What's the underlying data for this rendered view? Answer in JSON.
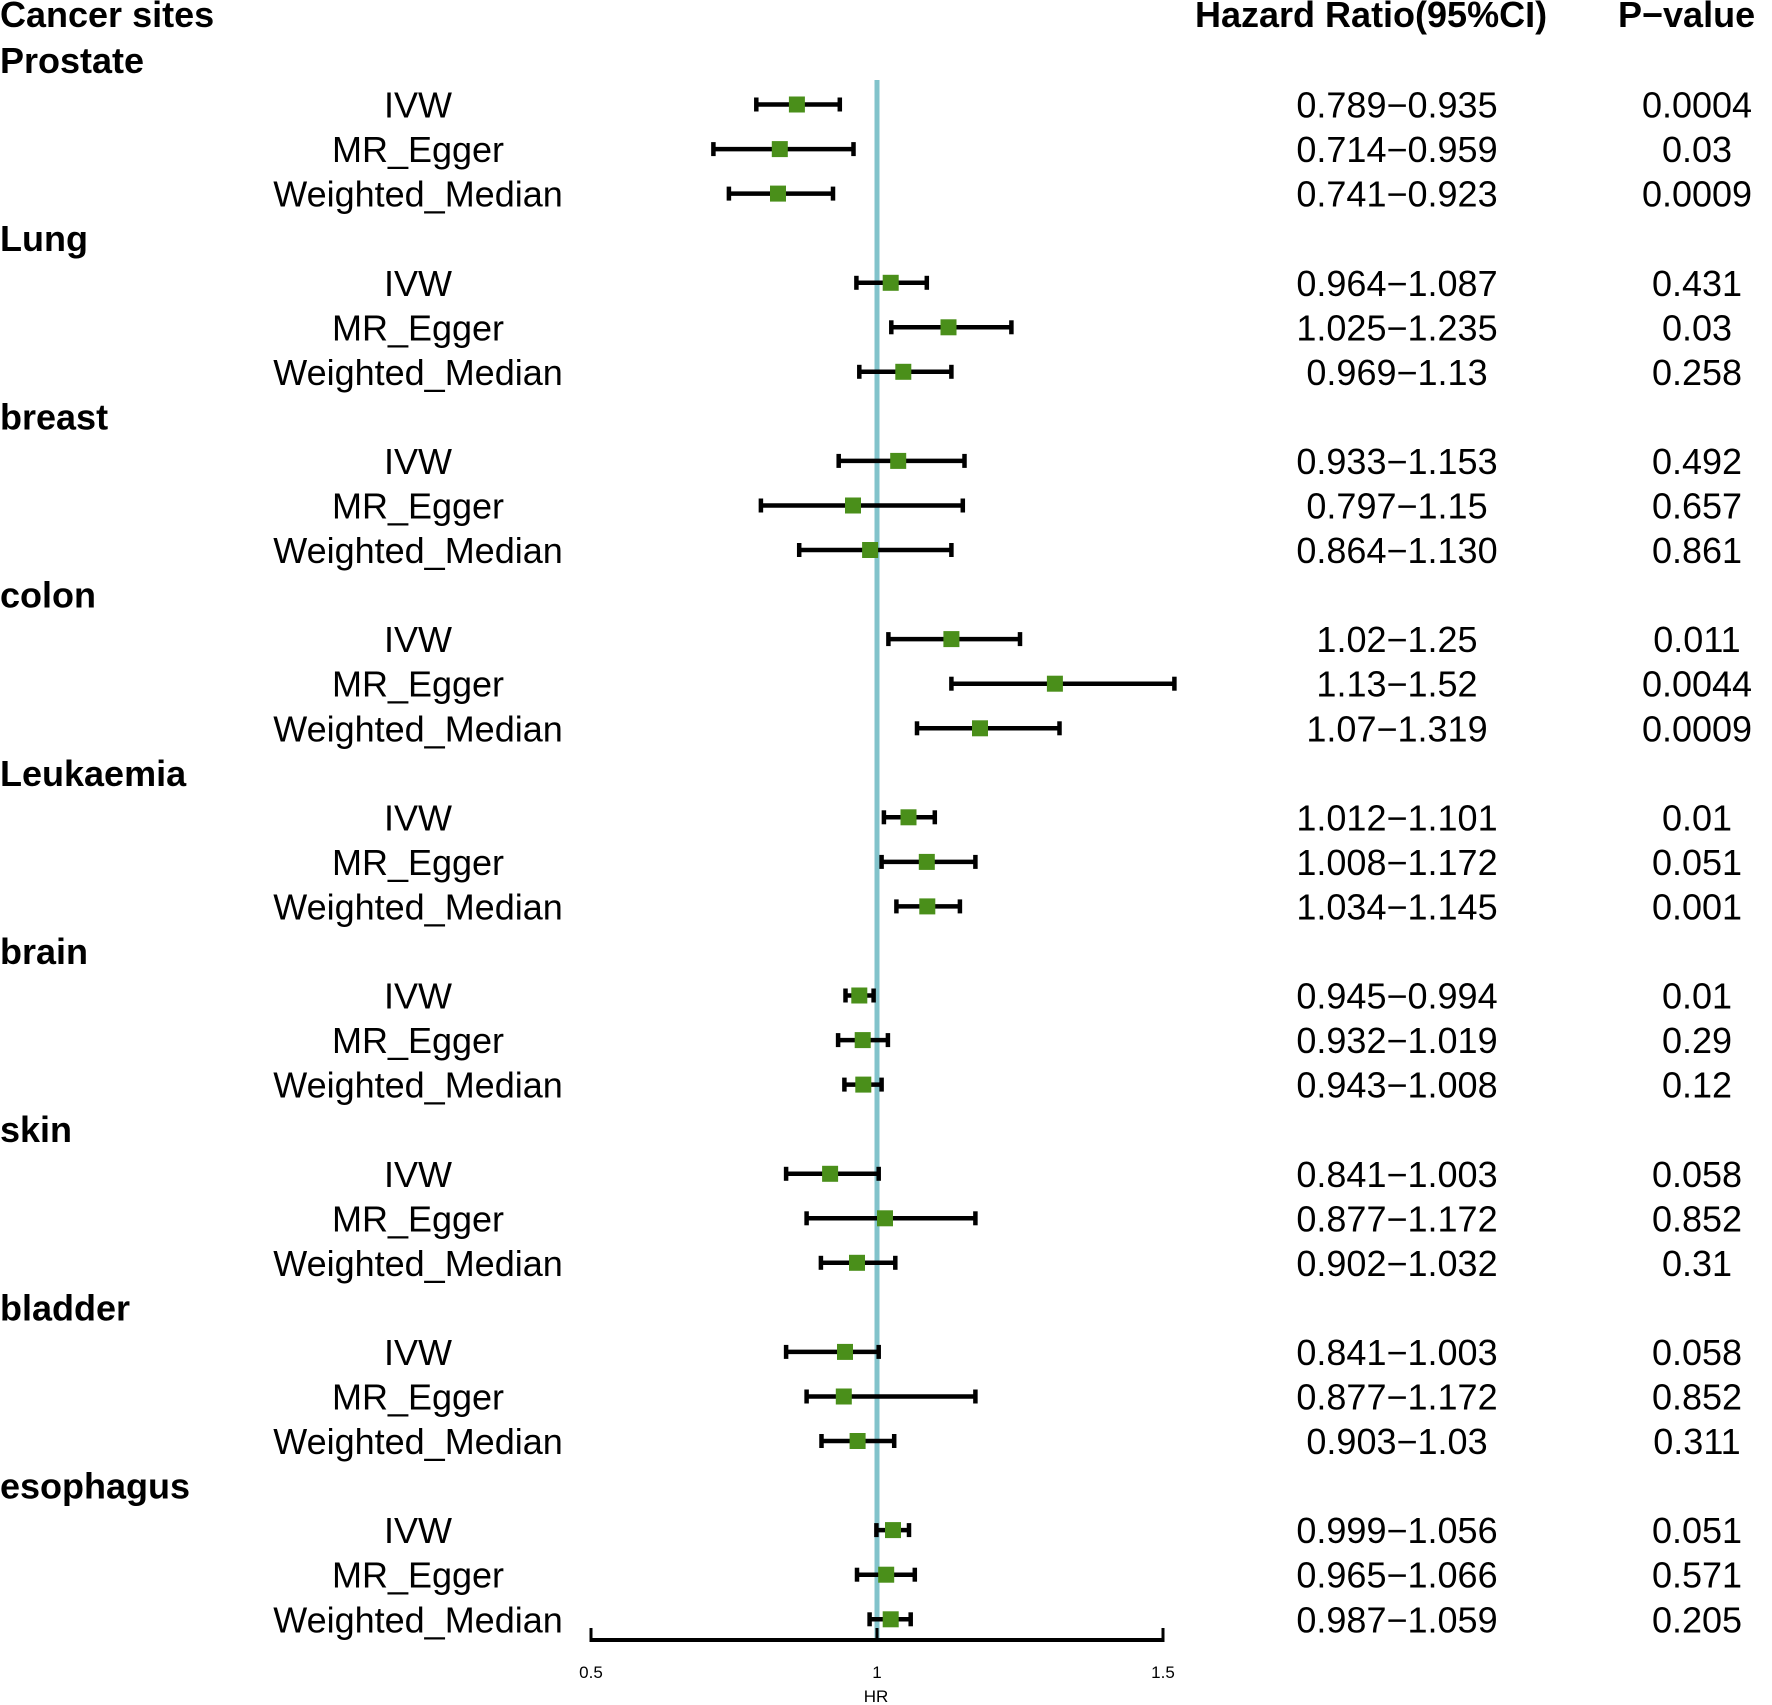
{
  "chart_data": {
    "type": "forest",
    "headers": {
      "sites": "Cancer sites",
      "hr": "Hazard Ratio(95%CI)",
      "p": "P−value"
    },
    "groups": [
      {
        "site": "Prostate",
        "rows": [
          {
            "method": "IVW",
            "hr": 0.86,
            "lo": 0.789,
            "hi": 0.935,
            "ci_label": "0.789−0.935",
            "p": "0.0004"
          },
          {
            "method": "MR_Egger",
            "hr": 0.83,
            "lo": 0.714,
            "hi": 0.959,
            "ci_label": "0.714−0.959",
            "p": "0.03"
          },
          {
            "method": "Weighted_Median",
            "hr": 0.827,
            "lo": 0.741,
            "hi": 0.923,
            "ci_label": "0.741−0.923",
            "p": "0.0009"
          }
        ]
      },
      {
        "site": "Lung",
        "rows": [
          {
            "method": "IVW",
            "hr": 1.024,
            "lo": 0.964,
            "hi": 1.087,
            "ci_label": "0.964−1.087",
            "p": "0.431"
          },
          {
            "method": "MR_Egger",
            "hr": 1.125,
            "lo": 1.025,
            "hi": 1.235,
            "ci_label": "1.025−1.235",
            "p": "0.03"
          },
          {
            "method": "Weighted_Median",
            "hr": 1.046,
            "lo": 0.969,
            "hi": 1.13,
            "ci_label": "0.969−1.13",
            "p": "0.258"
          }
        ]
      },
      {
        "site": "breast",
        "rows": [
          {
            "method": "IVW",
            "hr": 1.037,
            "lo": 0.933,
            "hi": 1.153,
            "ci_label": "0.933−1.153",
            "p": "0.492"
          },
          {
            "method": "MR_Egger",
            "hr": 0.958,
            "lo": 0.797,
            "hi": 1.15,
            "ci_label": "0.797−1.15",
            "p": "0.657"
          },
          {
            "method": "Weighted_Median",
            "hr": 0.988,
            "lo": 0.864,
            "hi": 1.13,
            "ci_label": "0.864−1.130",
            "p": "0.861"
          }
        ]
      },
      {
        "site": "colon",
        "rows": [
          {
            "method": "IVW",
            "hr": 1.13,
            "lo": 1.02,
            "hi": 1.25,
            "ci_label": "1.02−1.25",
            "p": "0.011"
          },
          {
            "method": "MR_Egger",
            "hr": 1.311,
            "lo": 1.13,
            "hi": 1.52,
            "ci_label": "1.13−1.52",
            "p": "0.0044"
          },
          {
            "method": "Weighted_Median",
            "hr": 1.18,
            "lo": 1.07,
            "hi": 1.319,
            "ci_label": "1.07−1.319",
            "p": "0.0009"
          }
        ]
      },
      {
        "site": "Leukaemia",
        "rows": [
          {
            "method": "IVW",
            "hr": 1.055,
            "lo": 1.012,
            "hi": 1.101,
            "ci_label": "1.012−1.101",
            "p": "0.01"
          },
          {
            "method": "MR_Egger",
            "hr": 1.087,
            "lo": 1.008,
            "hi": 1.172,
            "ci_label": "1.008−1.172",
            "p": "0.051"
          },
          {
            "method": "Weighted_Median",
            "hr": 1.088,
            "lo": 1.034,
            "hi": 1.145,
            "ci_label": "1.034−1.145",
            "p": "0.001"
          }
        ]
      },
      {
        "site": "brain",
        "rows": [
          {
            "method": "IVW",
            "hr": 0.969,
            "lo": 0.945,
            "hi": 0.994,
            "ci_label": "0.945−0.994",
            "p": "0.01"
          },
          {
            "method": "MR_Egger",
            "hr": 0.975,
            "lo": 0.932,
            "hi": 1.019,
            "ci_label": "0.932−1.019",
            "p": "0.29"
          },
          {
            "method": "Weighted_Median",
            "hr": 0.976,
            "lo": 0.943,
            "hi": 1.008,
            "ci_label": "0.943−1.008",
            "p": "0.12"
          }
        ]
      },
      {
        "site": "skin",
        "rows": [
          {
            "method": "IVW",
            "hr": 0.918,
            "lo": 0.841,
            "hi": 1.003,
            "ci_label": "0.841−1.003",
            "p": "0.058"
          },
          {
            "method": "MR_Egger",
            "hr": 1.014,
            "lo": 0.877,
            "hi": 1.172,
            "ci_label": "0.877−1.172",
            "p": "0.852"
          },
          {
            "method": "Weighted_Median",
            "hr": 0.965,
            "lo": 0.902,
            "hi": 1.032,
            "ci_label": "0.902−1.032",
            "p": "0.31"
          }
        ]
      },
      {
        "site": "bladder",
        "rows": [
          {
            "method": "IVW",
            "hr": 0.944,
            "lo": 0.841,
            "hi": 1.003,
            "ci_label": "0.841−1.003",
            "p": "0.058"
          },
          {
            "method": "MR_Egger",
            "hr": 0.942,
            "lo": 0.877,
            "hi": 1.172,
            "ci_label": "0.877−1.172",
            "p": "0.852"
          },
          {
            "method": "Weighted_Median",
            "hr": 0.966,
            "lo": 0.903,
            "hi": 1.03,
            "ci_label": "0.903−1.03",
            "p": "0.311"
          }
        ]
      },
      {
        "site": "esophagus",
        "rows": [
          {
            "method": "IVW",
            "hr": 1.028,
            "lo": 0.999,
            "hi": 1.056,
            "ci_label": "0.999−1.056",
            "p": "0.051"
          },
          {
            "method": "MR_Egger",
            "hr": 1.016,
            "lo": 0.965,
            "hi": 1.066,
            "ci_label": "0.965−1.066",
            "p": "0.571"
          },
          {
            "method": "Weighted_Median",
            "hr": 1.024,
            "lo": 0.987,
            "hi": 1.059,
            "ci_label": "0.987−1.059",
            "p": "0.205"
          }
        ]
      }
    ],
    "x_axis": {
      "label": "HR",
      "min": 0.5,
      "max": 1.5,
      "ticks": [
        0.5,
        1,
        1.5
      ],
      "tick_labels": [
        "0.5",
        "1",
        "1.5"
      ]
    },
    "reference_line": 1,
    "colors": {
      "point": "#4a8f1a",
      "ci": "#000000",
      "reference": "#82c3cb",
      "text": "#000000"
    }
  }
}
